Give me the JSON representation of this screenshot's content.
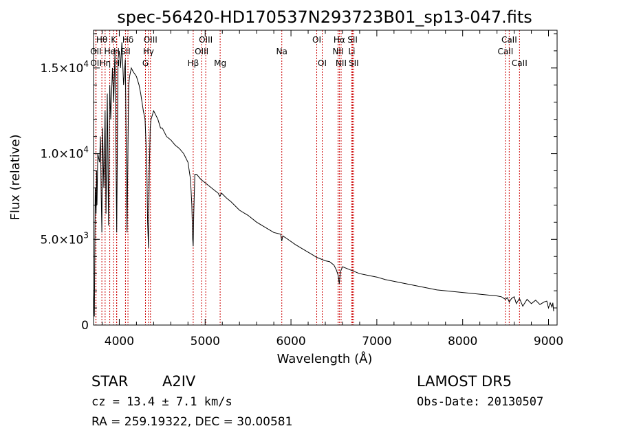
{
  "chart_data": {
    "type": "line",
    "title": "spec-56420-HD170537N293723B01_sp13-047.fits",
    "xlabel": "Wavelength (Å)",
    "ylabel": "Flux (relative)",
    "xlim": [
      3700,
      9100
    ],
    "ylim": [
      0,
      17200
    ],
    "x_ticks": [
      {
        "value": 4000,
        "label": "4000"
      },
      {
        "value": 5000,
        "label": "5000"
      },
      {
        "value": 6000,
        "label": "6000"
      },
      {
        "value": 7000,
        "label": "7000"
      },
      {
        "value": 8000,
        "label": "8000"
      },
      {
        "value": 9000,
        "label": "9000"
      }
    ],
    "y_ticks": [
      {
        "value": 0,
        "mantissa": "0",
        "exponent": ""
      },
      {
        "value": 5000,
        "mantissa": "5.0×10",
        "exponent": "3"
      },
      {
        "value": 10000,
        "mantissa": "1.0×10",
        "exponent": "4"
      },
      {
        "value": 15000,
        "mantissa": "1.5×10",
        "exponent": "4"
      }
    ],
    "grid": false,
    "series": [
      {
        "color": "#000000",
        "x": [
          3700,
          3710,
          3720,
          3730,
          3735,
          3740,
          3750,
          3770,
          3780,
          3790,
          3797,
          3805,
          3820,
          3835,
          3845,
          3860,
          3875,
          3889,
          3900,
          3920,
          3935,
          3950,
          3970,
          3985,
          4000,
          4015,
          4030,
          4050,
          4070,
          4080,
          4090,
          4101,
          4110,
          4120,
          4140,
          4160,
          4200,
          4230,
          4250,
          4280,
          4300,
          4320,
          4330,
          4340,
          4350,
          4360,
          4370,
          4400,
          4450,
          4480,
          4500,
          4550,
          4600,
          4650,
          4700,
          4750,
          4800,
          4830,
          4845,
          4855,
          4861,
          4867,
          4880,
          4900,
          4950,
          5000,
          5050,
          5100,
          5150,
          5172,
          5190,
          5250,
          5300,
          5400,
          5500,
          5600,
          5700,
          5800,
          5880,
          5893,
          5905,
          5950,
          6050,
          6150,
          6250,
          6300,
          6350,
          6400,
          6450,
          6500,
          6530,
          6550,
          6563,
          6575,
          6600,
          6650,
          6700,
          6750,
          6800,
          6900,
          7000,
          7100,
          7200,
          7300,
          7400,
          7500,
          7600,
          7700,
          7800,
          7900,
          8000,
          8100,
          8200,
          8300,
          8400,
          8450,
          8498,
          8520,
          8542,
          8570,
          8600,
          8625,
          8662,
          8700,
          8750,
          8800,
          8850,
          8900,
          8950,
          8980,
          9000,
          9020,
          9040,
          9050,
          9060
        ],
        "y": [
          2000,
          500,
          8000,
          6500,
          9000,
          7000,
          10000,
          9500,
          11000,
          7500,
          5400,
          11500,
          8000,
          12500,
          6500,
          13500,
          5800,
          14000,
          12000,
          15000,
          13000,
          16000,
          5400,
          15500,
          16000,
          15000,
          16500,
          14000,
          15500,
          11000,
          5400,
          10500,
          14000,
          14500,
          15000,
          14800,
          14500,
          14000,
          13500,
          12500,
          12000,
          9500,
          6000,
          4500,
          9000,
          11500,
          12000,
          12500,
          12000,
          11500,
          11500,
          11000,
          10800,
          10500,
          10300,
          10000,
          9500,
          8500,
          7000,
          5000,
          4600,
          6500,
          8800,
          8800,
          8500,
          8300,
          8100,
          7900,
          7700,
          7500,
          7700,
          7400,
          7200,
          6700,
          6400,
          6000,
          5700,
          5400,
          5300,
          4900,
          5200,
          5050,
          4700,
          4400,
          4100,
          3950,
          3850,
          3750,
          3700,
          3500,
          3200,
          2900,
          2400,
          3100,
          3400,
          3300,
          3200,
          3100,
          3000,
          2900,
          2800,
          2650,
          2550,
          2450,
          2350,
          2250,
          2150,
          2050,
          2000,
          1950,
          1900,
          1850,
          1800,
          1750,
          1700,
          1650,
          1500,
          1600,
          1350,
          1550,
          1650,
          1250,
          1550,
          1100,
          1500,
          1250,
          1450,
          1200,
          1350,
          1400,
          1000,
          1300,
          1050,
          1300,
          800
        ]
      }
    ],
    "lines": [
      {
        "label": "Hθ",
        "x": 3797,
        "row": 0
      },
      {
        "label": "OII",
        "x": 3727,
        "row": 1
      },
      {
        "label": "OII",
        "x": 3729,
        "row": 2
      },
      {
        "label": "K",
        "x": 3934,
        "row": 0
      },
      {
        "label": "He",
        "x": 3889,
        "row": 1
      },
      {
        "label": "Hη",
        "x": 3835,
        "row": 2
      },
      {
        "label": "H",
        "x": 3969,
        "row": 1
      },
      {
        "label": "H",
        "x": 3970,
        "row": 2
      },
      {
        "label": "Hδ",
        "x": 4101,
        "row": 0
      },
      {
        "label": "SII",
        "x": 4072,
        "row": 1
      },
      {
        "label": "OIII",
        "x": 4363,
        "row": 0
      },
      {
        "label": "Hγ",
        "x": 4340,
        "row": 1
      },
      {
        "label": "G",
        "x": 4305,
        "row": 2
      },
      {
        "label": "OIII",
        "x": 5007,
        "row": 0
      },
      {
        "label": "OIII",
        "x": 4959,
        "row": 1
      },
      {
        "label": "Hβ",
        "x": 4861,
        "row": 2
      },
      {
        "label": "Mg",
        "x": 5175,
        "row": 2
      },
      {
        "label": "Na",
        "x": 5893,
        "row": 1
      },
      {
        "label": "OI",
        "x": 6300,
        "row": 0
      },
      {
        "label": "OI",
        "x": 6364,
        "row": 2
      },
      {
        "label": "Hα",
        "x": 6563,
        "row": 0
      },
      {
        "label": "NII",
        "x": 6548,
        "row": 1
      },
      {
        "label": "NII",
        "x": 6584,
        "row": 2
      },
      {
        "label": "SII",
        "x": 6717,
        "row": 0
      },
      {
        "label": "Li",
        "x": 6708,
        "row": 1
      },
      {
        "label": "SII",
        "x": 6731,
        "row": 2
      },
      {
        "label": "CaII",
        "x": 8542,
        "row": 0
      },
      {
        "label": "CaII",
        "x": 8498,
        "row": 1
      },
      {
        "label": "CaII",
        "x": 8662,
        "row": 2
      }
    ]
  },
  "info": {
    "object_type": "STAR",
    "subclass": "A2IV",
    "survey": "LAMOST DR5",
    "cz": "cz = 13.4 ± 7.1 km/s",
    "obs_date": "Obs-Date: 20130507",
    "coords": "RA = 259.19322, DEC =  30.00581"
  },
  "colors": {
    "spectrum": "#000000",
    "line_markers": "#cc0000",
    "axes": "#000000",
    "background": "#ffffff"
  }
}
